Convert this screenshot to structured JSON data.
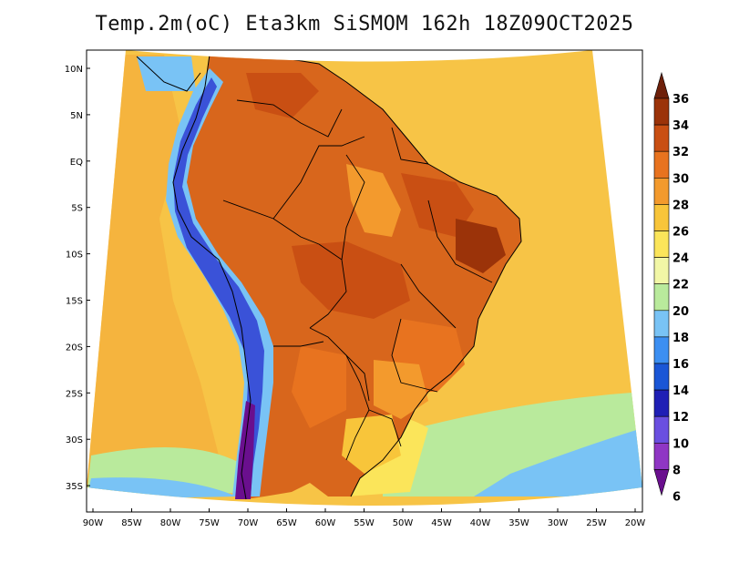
{
  "title": "Temp.2m(oC) Eta3km SiSMOM 162h 18Z09OCT2025",
  "lat_labels": [
    "10N",
    "5N",
    "EQ",
    "5S",
    "10S",
    "15S",
    "20S",
    "25S",
    "30S",
    "35S"
  ],
  "lon_labels": [
    "90W",
    "85W",
    "80W",
    "75W",
    "70W",
    "65W",
    "60W",
    "55W",
    "50W",
    "45W",
    "40W",
    "35W",
    "30W",
    "25W",
    "20W"
  ],
  "colorbar": {
    "levels": [
      "6",
      "8",
      "10",
      "12",
      "14",
      "16",
      "18",
      "20",
      "22",
      "24",
      "26",
      "28",
      "30",
      "32",
      "34",
      "36"
    ],
    "colors": [
      "#6a0f8e",
      "#8f36c4",
      "#6a4fe0",
      "#1f1fb5",
      "#1a56d6",
      "#3c8ff2",
      "#79c3f5",
      "#b9ea9c",
      "#f2f7a6",
      "#fbe55a",
      "#f8c53a",
      "#f39a2d",
      "#e8731f",
      "#c94f13",
      "#9b3309",
      "#6e200a"
    ]
  },
  "map": {
    "ocean_color": "#f7c446",
    "land_color": "#d8661c",
    "highlands_color": "#e08a2c",
    "andes_cold_color": "#3a52d8",
    "andes_warm_color": "#79c3f5",
    "south_cool_color": "#b9ea9c",
    "south_cold_color": "#79c3f5"
  }
}
